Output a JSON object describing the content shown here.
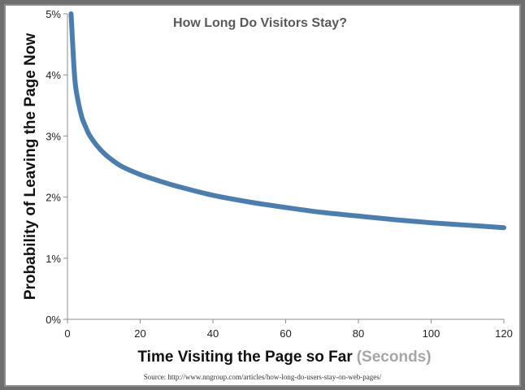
{
  "chart_data": {
    "type": "line",
    "title": "How Long Do Visitors Stay?",
    "xlabel": "Time Visiting the Page so Far",
    "xlabel_suffix": "(Seconds)",
    "ylabel": "Probability of Leaving  the Page Now",
    "xlim": [
      0,
      120
    ],
    "ylim": [
      0,
      5
    ],
    "x_ticks": [
      0,
      20,
      40,
      60,
      80,
      100,
      120
    ],
    "y_ticks": [
      0,
      1,
      2,
      3,
      4,
      5
    ],
    "y_tick_labels": [
      "0%",
      "1%",
      "2%",
      "3%",
      "4%",
      "5%"
    ],
    "grid": false,
    "series": [
      {
        "x": [
          1,
          2,
          3,
          4,
          5,
          6,
          8,
          10,
          12,
          15,
          20,
          25,
          30,
          40,
          50,
          60,
          70,
          80,
          90,
          100,
          110,
          120
        ],
        "values": [
          5.0,
          3.95,
          3.55,
          3.3,
          3.15,
          3.02,
          2.85,
          2.72,
          2.62,
          2.5,
          2.37,
          2.27,
          2.18,
          2.03,
          1.92,
          1.83,
          1.75,
          1.69,
          1.63,
          1.58,
          1.54,
          1.5
        ],
        "color": "#4a7eb0"
      }
    ],
    "source": "Source: http://www.nngroup.com/articles/how-long-do-users-stay-on-web-pages/"
  },
  "colors": {
    "line": "#4a7eb0",
    "title": "#595959",
    "axis": "#8c8c8c",
    "xlabel_suffix": "#a6a6a6"
  }
}
